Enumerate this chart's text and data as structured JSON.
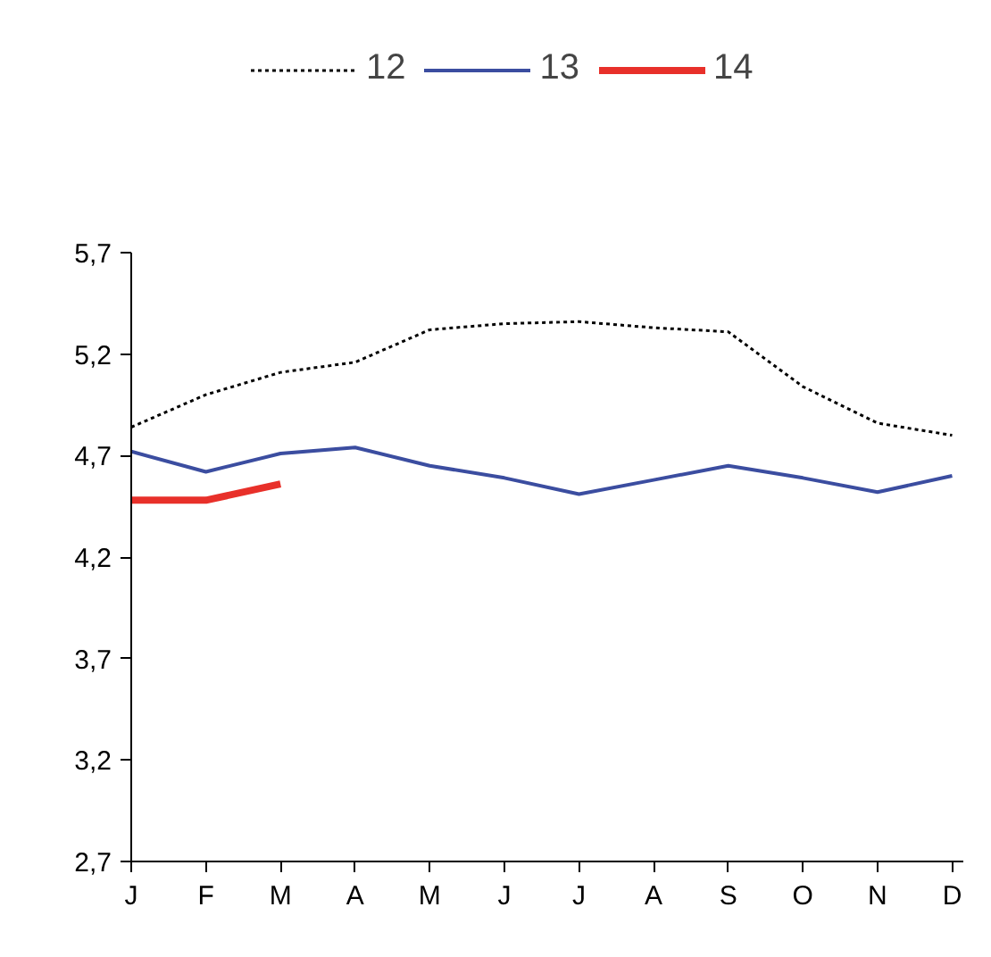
{
  "chart_data": {
    "type": "line",
    "categories": [
      "J",
      "F",
      "M",
      "A",
      "M",
      "J",
      "J",
      "A",
      "S",
      "O",
      "N",
      "D"
    ],
    "series": [
      {
        "name": "12",
        "color": "#000000",
        "line_style": "dotted",
        "values": [
          4.84,
          5.0,
          5.11,
          5.16,
          5.32,
          5.35,
          5.36,
          5.33,
          5.31,
          5.04,
          4.86,
          4.8
        ]
      },
      {
        "name": "13",
        "color": "#3b4da0",
        "line_style": "solid",
        "values": [
          4.72,
          4.62,
          4.71,
          4.74,
          4.65,
          4.59,
          4.51,
          4.58,
          4.65,
          4.59,
          4.52,
          4.6
        ]
      },
      {
        "name": "14",
        "color": "#e8302a",
        "line_style": "solid",
        "values": [
          4.48,
          4.48,
          4.56,
          null,
          null,
          null,
          null,
          null,
          null,
          null,
          null,
          null
        ]
      }
    ],
    "ylim": [
      2.7,
      5.7
    ],
    "yticks": [
      {
        "value": 2.7,
        "label": "2,7"
      },
      {
        "value": 3.2,
        "label": "3,2"
      },
      {
        "value": 3.7,
        "label": "3,7"
      },
      {
        "value": 4.2,
        "label": "4,2"
      },
      {
        "value": 4.7,
        "label": "4,7"
      },
      {
        "value": 5.2,
        "label": "5,2"
      },
      {
        "value": 5.7,
        "label": "5,7"
      }
    ],
    "grid": false,
    "legend": "top",
    "marker": "none"
  }
}
